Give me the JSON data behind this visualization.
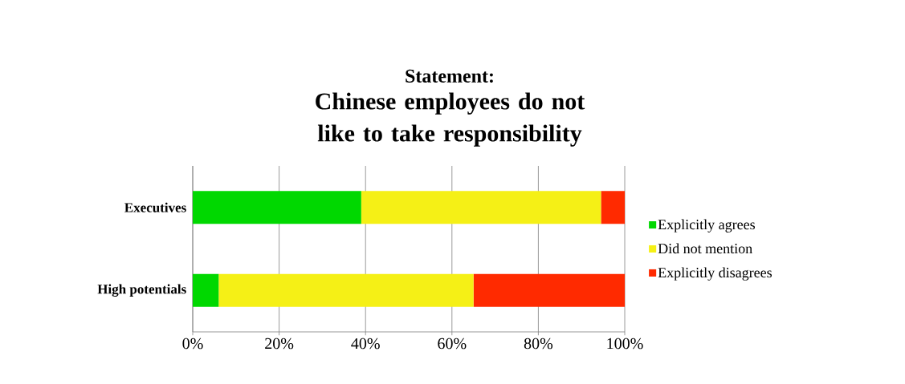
{
  "chart_data": {
    "type": "bar",
    "orientation": "horizontal",
    "stacked": true,
    "title": "Statement:",
    "subtitle": "Chinese employees do not like to take responsibility",
    "categories": [
      "Executives",
      "High potentials"
    ],
    "series": [
      {
        "name": "Explicitly agrees",
        "color": "#00d800",
        "values": [
          39,
          6
        ]
      },
      {
        "name": "Did not mention",
        "color": "#f5f016",
        "values": [
          55.5,
          59
        ]
      },
      {
        "name": "Explicitly disagrees",
        "color": "#ff2a00",
        "values": [
          5.5,
          35
        ]
      }
    ],
    "xlim": [
      0,
      100
    ],
    "xticks": [
      {
        "value": 0,
        "label": "0%"
      },
      {
        "value": 20,
        "label": "20%"
      },
      {
        "value": 40,
        "label": "40%"
      },
      {
        "value": 60,
        "label": "60%"
      },
      {
        "value": 80,
        "label": "80%"
      },
      {
        "value": 100,
        "label": "100%"
      }
    ],
    "grid": "x",
    "legend": "right"
  }
}
